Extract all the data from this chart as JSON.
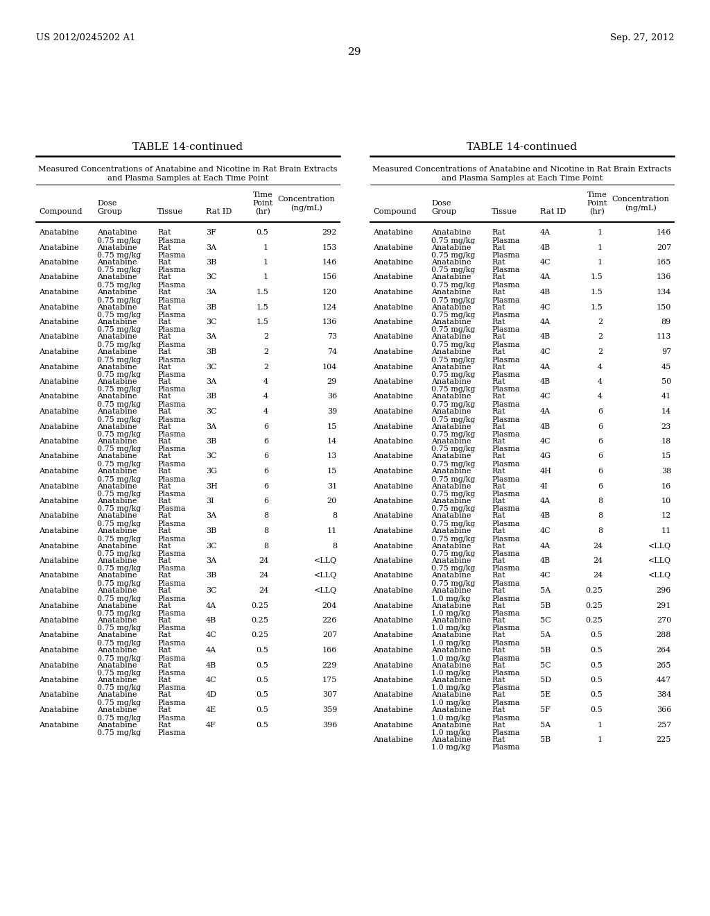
{
  "page_left": "US 2012/0245202 A1",
  "page_right": "Sep. 27, 2012",
  "page_number": "29",
  "table_title": "TABLE 14-continued",
  "subtitle_line1": "Measured Concentrations of Anatabine and Nicotine in Rat Brain Extracts",
  "subtitle_line2": "and Plasma Samples at Each Time Point",
  "left_rows": [
    [
      "Anatabine",
      "Anatabine",
      "Rat",
      "3F",
      "0.5",
      "292"
    ],
    [
      "",
      "0.75 mg/kg",
      "Plasma",
      "",
      "",
      ""
    ],
    [
      "Anatabine",
      "Anatabine",
      "Rat",
      "3A",
      "1",
      "153"
    ],
    [
      "",
      "0.75 mg/kg",
      "Plasma",
      "",
      "",
      ""
    ],
    [
      "Anatabine",
      "Anatabine",
      "Rat",
      "3B",
      "1",
      "146"
    ],
    [
      "",
      "0.75 mg/kg",
      "Plasma",
      "",
      "",
      ""
    ],
    [
      "Anatabine",
      "Anatabine",
      "Rat",
      "3C",
      "1",
      "156"
    ],
    [
      "",
      "0.75 mg/kg",
      "Plasma",
      "",
      "",
      ""
    ],
    [
      "Anatabine",
      "Anatabine",
      "Rat",
      "3A",
      "1.5",
      "120"
    ],
    [
      "",
      "0.75 mg/kg",
      "Plasma",
      "",
      "",
      ""
    ],
    [
      "Anatabine",
      "Anatabine",
      "Rat",
      "3B",
      "1.5",
      "124"
    ],
    [
      "",
      "0.75 mg/kg",
      "Plasma",
      "",
      "",
      ""
    ],
    [
      "Anatabine",
      "Anatabine",
      "Rat",
      "3C",
      "1.5",
      "136"
    ],
    [
      "",
      "0.75 mg/kg",
      "Plasma",
      "",
      "",
      ""
    ],
    [
      "Anatabine",
      "Anatabine",
      "Rat",
      "3A",
      "2",
      "73"
    ],
    [
      "",
      "0.75 mg/kg",
      "Plasma",
      "",
      "",
      ""
    ],
    [
      "Anatabine",
      "Anatabine",
      "Rat",
      "3B",
      "2",
      "74"
    ],
    [
      "",
      "0.75 mg/kg",
      "Plasma",
      "",
      "",
      ""
    ],
    [
      "Anatabine",
      "Anatabine",
      "Rat",
      "3C",
      "2",
      "104"
    ],
    [
      "",
      "0.75 mg/kg",
      "Plasma",
      "",
      "",
      ""
    ],
    [
      "Anatabine",
      "Anatabine",
      "Rat",
      "3A",
      "4",
      "29"
    ],
    [
      "",
      "0.75 mg/kg",
      "Plasma",
      "",
      "",
      ""
    ],
    [
      "Anatabine",
      "Anatabine",
      "Rat",
      "3B",
      "4",
      "36"
    ],
    [
      "",
      "0.75 mg/kg",
      "Plasma",
      "",
      "",
      ""
    ],
    [
      "Anatabine",
      "Anatabine",
      "Rat",
      "3C",
      "4",
      "39"
    ],
    [
      "",
      "0.75 mg/kg",
      "Plasma",
      "",
      "",
      ""
    ],
    [
      "Anatabine",
      "Anatabine",
      "Rat",
      "3A",
      "6",
      "15"
    ],
    [
      "",
      "0.75 mg/kg",
      "Plasma",
      "",
      "",
      ""
    ],
    [
      "Anatabine",
      "Anatabine",
      "Rat",
      "3B",
      "6",
      "14"
    ],
    [
      "",
      "0.75 mg/kg",
      "Plasma",
      "",
      "",
      ""
    ],
    [
      "Anatabine",
      "Anatabine",
      "Rat",
      "3C",
      "6",
      "13"
    ],
    [
      "",
      "0.75 mg/kg",
      "Plasma",
      "",
      "",
      ""
    ],
    [
      "Anatabine",
      "Anatabine",
      "Rat",
      "3G",
      "6",
      "15"
    ],
    [
      "",
      "0.75 mg/kg",
      "Plasma",
      "",
      "",
      ""
    ],
    [
      "Anatabine",
      "Anatabine",
      "Rat",
      "3H",
      "6",
      "31"
    ],
    [
      "",
      "0.75 mg/kg",
      "Plasma",
      "",
      "",
      ""
    ],
    [
      "Anatabine",
      "Anatabine",
      "Rat",
      "3I",
      "6",
      "20"
    ],
    [
      "",
      "0.75 mg/kg",
      "Plasma",
      "",
      "",
      ""
    ],
    [
      "Anatabine",
      "Anatabine",
      "Rat",
      "3A",
      "8",
      "8"
    ],
    [
      "",
      "0.75 mg/kg",
      "Plasma",
      "",
      "",
      ""
    ],
    [
      "Anatabine",
      "Anatabine",
      "Rat",
      "3B",
      "8",
      "11"
    ],
    [
      "",
      "0.75 mg/kg",
      "Plasma",
      "",
      "",
      ""
    ],
    [
      "Anatabine",
      "Anatabine",
      "Rat",
      "3C",
      "8",
      "8"
    ],
    [
      "",
      "0.75 mg/kg",
      "Plasma",
      "",
      "",
      ""
    ],
    [
      "Anatabine",
      "Anatabine",
      "Rat",
      "3A",
      "24",
      "<LLQ"
    ],
    [
      "",
      "0.75 mg/kg",
      "Plasma",
      "",
      "",
      ""
    ],
    [
      "Anatabine",
      "Anatabine",
      "Rat",
      "3B",
      "24",
      "<LLQ"
    ],
    [
      "",
      "0.75 mg/kg",
      "Plasma",
      "",
      "",
      ""
    ],
    [
      "Anatabine",
      "Anatabine",
      "Rat",
      "3C",
      "24",
      "<LLQ"
    ],
    [
      "",
      "0.75 mg/kg",
      "Plasma",
      "",
      "",
      ""
    ],
    [
      "Anatabine",
      "Anatabine",
      "Rat",
      "4A",
      "0.25",
      "204"
    ],
    [
      "",
      "0.75 mg/kg",
      "Plasma",
      "",
      "",
      ""
    ],
    [
      "Anatabine",
      "Anatabine",
      "Rat",
      "4B",
      "0.25",
      "226"
    ],
    [
      "",
      "0.75 mg/kg",
      "Plasma",
      "",
      "",
      ""
    ],
    [
      "Anatabine",
      "Anatabine",
      "Rat",
      "4C",
      "0.25",
      "207"
    ],
    [
      "",
      "0.75 mg/kg",
      "Plasma",
      "",
      "",
      ""
    ],
    [
      "Anatabine",
      "Anatabine",
      "Rat",
      "4A",
      "0.5",
      "166"
    ],
    [
      "",
      "0.75 mg/kg",
      "Plasma",
      "",
      "",
      ""
    ],
    [
      "Anatabine",
      "Anatabine",
      "Rat",
      "4B",
      "0.5",
      "229"
    ],
    [
      "",
      "0.75 mg/kg",
      "Plasma",
      "",
      "",
      ""
    ],
    [
      "Anatabine",
      "Anatabine",
      "Rat",
      "4C",
      "0.5",
      "175"
    ],
    [
      "",
      "0.75 mg/kg",
      "Plasma",
      "",
      "",
      ""
    ],
    [
      "Anatabine",
      "Anatabine",
      "Rat",
      "4D",
      "0.5",
      "307"
    ],
    [
      "",
      "0.75 mg/kg",
      "Plasma",
      "",
      "",
      ""
    ],
    [
      "Anatabine",
      "Anatabine",
      "Rat",
      "4E",
      "0.5",
      "359"
    ],
    [
      "",
      "0.75 mg/kg",
      "Plasma",
      "",
      "",
      ""
    ],
    [
      "Anatabine",
      "Anatabine",
      "Rat",
      "4F",
      "0.5",
      "396"
    ],
    [
      "",
      "0.75 mg/kg",
      "Plasma",
      "",
      "",
      ""
    ]
  ],
  "right_rows": [
    [
      "Anatabine",
      "Anatabine",
      "Rat",
      "4A",
      "1",
      "146"
    ],
    [
      "",
      "0.75 mg/kg",
      "Plasma",
      "",
      "",
      ""
    ],
    [
      "Anatabine",
      "Anatabine",
      "Rat",
      "4B",
      "1",
      "207"
    ],
    [
      "",
      "0.75 mg/kg",
      "Plasma",
      "",
      "",
      ""
    ],
    [
      "Anatabine",
      "Anatabine",
      "Rat",
      "4C",
      "1",
      "165"
    ],
    [
      "",
      "0.75 mg/kg",
      "Plasma",
      "",
      "",
      ""
    ],
    [
      "Anatabine",
      "Anatabine",
      "Rat",
      "4A",
      "1.5",
      "136"
    ],
    [
      "",
      "0.75 mg/kg",
      "Plasma",
      "",
      "",
      ""
    ],
    [
      "Anatabine",
      "Anatabine",
      "Rat",
      "4B",
      "1.5",
      "134"
    ],
    [
      "",
      "0.75 mg/kg",
      "Plasma",
      "",
      "",
      ""
    ],
    [
      "Anatabine",
      "Anatabine",
      "Rat",
      "4C",
      "1.5",
      "150"
    ],
    [
      "",
      "0.75 mg/kg",
      "Plasma",
      "",
      "",
      ""
    ],
    [
      "Anatabine",
      "Anatabine",
      "Rat",
      "4A",
      "2",
      "89"
    ],
    [
      "",
      "0.75 mg/kg",
      "Plasma",
      "",
      "",
      ""
    ],
    [
      "Anatabine",
      "Anatabine",
      "Rat",
      "4B",
      "2",
      "113"
    ],
    [
      "",
      "0.75 mg/kg",
      "Plasma",
      "",
      "",
      ""
    ],
    [
      "Anatabine",
      "Anatabine",
      "Rat",
      "4C",
      "2",
      "97"
    ],
    [
      "",
      "0.75 mg/kg",
      "Plasma",
      "",
      "",
      ""
    ],
    [
      "Anatabine",
      "Anatabine",
      "Rat",
      "4A",
      "4",
      "45"
    ],
    [
      "",
      "0.75 mg/kg",
      "Plasma",
      "",
      "",
      ""
    ],
    [
      "Anatabine",
      "Anatabine",
      "Rat",
      "4B",
      "4",
      "50"
    ],
    [
      "",
      "0.75 mg/kg",
      "Plasma",
      "",
      "",
      ""
    ],
    [
      "Anatabine",
      "Anatabine",
      "Rat",
      "4C",
      "4",
      "41"
    ],
    [
      "",
      "0.75 mg/kg",
      "Plasma",
      "",
      "",
      ""
    ],
    [
      "Anatabine",
      "Anatabine",
      "Rat",
      "4A",
      "6",
      "14"
    ],
    [
      "",
      "0.75 mg/kg",
      "Plasma",
      "",
      "",
      ""
    ],
    [
      "Anatabine",
      "Anatabine",
      "Rat",
      "4B",
      "6",
      "23"
    ],
    [
      "",
      "0.75 mg/kg",
      "Plasma",
      "",
      "",
      ""
    ],
    [
      "Anatabine",
      "Anatabine",
      "Rat",
      "4C",
      "6",
      "18"
    ],
    [
      "",
      "0.75 mg/kg",
      "Plasma",
      "",
      "",
      ""
    ],
    [
      "Anatabine",
      "Anatabine",
      "Rat",
      "4G",
      "6",
      "15"
    ],
    [
      "",
      "0.75 mg/kg",
      "Plasma",
      "",
      "",
      ""
    ],
    [
      "Anatabine",
      "Anatabine",
      "Rat",
      "4H",
      "6",
      "38"
    ],
    [
      "",
      "0.75 mg/kg",
      "Plasma",
      "",
      "",
      ""
    ],
    [
      "Anatabine",
      "Anatabine",
      "Rat",
      "4I",
      "6",
      "16"
    ],
    [
      "",
      "0.75 mg/kg",
      "Plasma",
      "",
      "",
      ""
    ],
    [
      "Anatabine",
      "Anatabine",
      "Rat",
      "4A",
      "8",
      "10"
    ],
    [
      "",
      "0.75 mg/kg",
      "Plasma",
      "",
      "",
      ""
    ],
    [
      "Anatabine",
      "Anatabine",
      "Rat",
      "4B",
      "8",
      "12"
    ],
    [
      "",
      "0.75 mg/kg",
      "Plasma",
      "",
      "",
      ""
    ],
    [
      "Anatabine",
      "Anatabine",
      "Rat",
      "4C",
      "8",
      "11"
    ],
    [
      "",
      "0.75 mg/kg",
      "Plasma",
      "",
      "",
      ""
    ],
    [
      "Anatabine",
      "Anatabine",
      "Rat",
      "4A",
      "24",
      "<LLQ"
    ],
    [
      "",
      "0.75 mg/kg",
      "Plasma",
      "",
      "",
      ""
    ],
    [
      "Anatabine",
      "Anatabine",
      "Rat",
      "4B",
      "24",
      "<LLQ"
    ],
    [
      "",
      "0.75 mg/kg",
      "Plasma",
      "",
      "",
      ""
    ],
    [
      "Anatabine",
      "Anatabine",
      "Rat",
      "4C",
      "24",
      "<LLQ"
    ],
    [
      "",
      "0.75 mg/kg",
      "Plasma",
      "",
      "",
      ""
    ],
    [
      "Anatabine",
      "Anatabine",
      "Rat",
      "5A",
      "0.25",
      "296"
    ],
    [
      "",
      "1.0 mg/kg",
      "Plasma",
      "",
      "",
      ""
    ],
    [
      "Anatabine",
      "Anatabine",
      "Rat",
      "5B",
      "0.25",
      "291"
    ],
    [
      "",
      "1.0 mg/kg",
      "Plasma",
      "",
      "",
      ""
    ],
    [
      "Anatabine",
      "Anatabine",
      "Rat",
      "5C",
      "0.25",
      "270"
    ],
    [
      "",
      "1.0 mg/kg",
      "Plasma",
      "",
      "",
      ""
    ],
    [
      "Anatabine",
      "Anatabine",
      "Rat",
      "5A",
      "0.5",
      "288"
    ],
    [
      "",
      "1.0 mg/kg",
      "Plasma",
      "",
      "",
      ""
    ],
    [
      "Anatabine",
      "Anatabine",
      "Rat",
      "5B",
      "0.5",
      "264"
    ],
    [
      "",
      "1.0 mg/kg",
      "Plasma",
      "",
      "",
      ""
    ],
    [
      "Anatabine",
      "Anatabine",
      "Rat",
      "5C",
      "0.5",
      "265"
    ],
    [
      "",
      "1.0 mg/kg",
      "Plasma",
      "",
      "",
      ""
    ],
    [
      "Anatabine",
      "Anatabine",
      "Rat",
      "5D",
      "0.5",
      "447"
    ],
    [
      "",
      "1.0 mg/kg",
      "Plasma",
      "",
      "",
      ""
    ],
    [
      "Anatabine",
      "Anatabine",
      "Rat",
      "5E",
      "0.5",
      "384"
    ],
    [
      "",
      "1.0 mg/kg",
      "Plasma",
      "",
      "",
      ""
    ],
    [
      "Anatabine",
      "Anatabine",
      "Rat",
      "5F",
      "0.5",
      "366"
    ],
    [
      "",
      "1.0 mg/kg",
      "Plasma",
      "",
      "",
      ""
    ],
    [
      "Anatabine",
      "Anatabine",
      "Rat",
      "5A",
      "1",
      "257"
    ],
    [
      "",
      "1.0 mg/kg",
      "Plasma",
      "",
      "",
      ""
    ],
    [
      "Anatabine",
      "Anatabine",
      "Rat",
      "5B",
      "1",
      "225"
    ],
    [
      "",
      "1.0 mg/kg",
      "Plasma",
      "",
      "",
      ""
    ]
  ],
  "background_color": "#ffffff",
  "text_color": "#000000"
}
